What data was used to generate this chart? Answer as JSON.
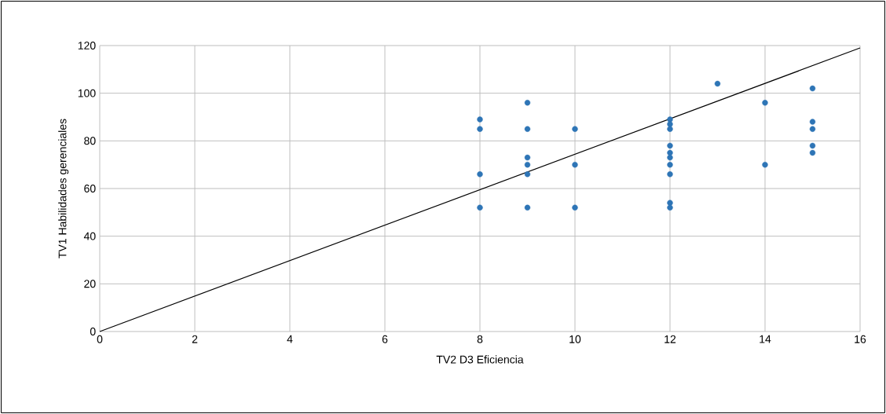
{
  "chart_data": {
    "type": "scatter",
    "xlabel": "TV2 D3 Eficiencia",
    "ylabel": "TV1 Habilidades gerenciales",
    "xlim": [
      0,
      16
    ],
    "ylim": [
      0,
      120
    ],
    "xticks": [
      0,
      2,
      4,
      6,
      8,
      10,
      12,
      14,
      16
    ],
    "yticks": [
      0,
      20,
      40,
      60,
      80,
      100,
      120
    ],
    "grid": true,
    "marker": "circle",
    "series": [
      {
        "color": "#2e75b6",
        "x": [
          8,
          8,
          8,
          8,
          9,
          9,
          9,
          9,
          9,
          9,
          10,
          10,
          10,
          12,
          12,
          12,
          12,
          12,
          12,
          12,
          12,
          12,
          12,
          13,
          14,
          14,
          15,
          15,
          15,
          15,
          15
        ],
        "values": [
          89,
          85,
          66,
          52,
          96,
          85,
          73,
          70,
          66,
          52,
          85,
          70,
          52,
          89,
          87,
          85,
          78,
          75,
          73,
          70,
          66,
          54,
          52,
          104,
          96,
          70,
          102,
          88,
          85,
          78,
          75
        ]
      },
      {
        "type": "line",
        "color": "#000000",
        "marker": "none",
        "x": [
          0,
          16
        ],
        "values": [
          0,
          119
        ]
      }
    ]
  }
}
